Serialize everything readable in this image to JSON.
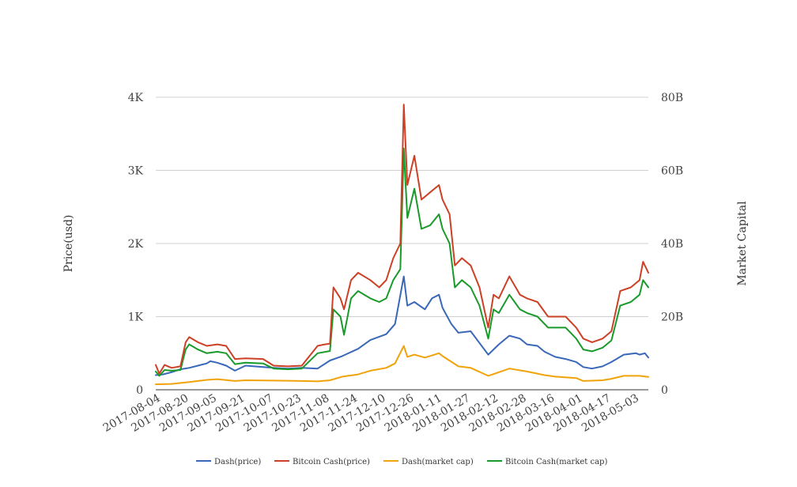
{
  "chart_data": {
    "type": "line",
    "title": "",
    "ylabel_left": "Price(usd)",
    "ylabel_right": "Market Capital",
    "ylim_left": [
      0,
      4000
    ],
    "ylim_right": [
      0,
      80000000000
    ],
    "yticks_left": [
      "0",
      "1K",
      "2K",
      "3K",
      "4K"
    ],
    "yticks_right": [
      "0",
      "20B",
      "40B",
      "60B",
      "80B"
    ],
    "x_range": [
      "2017-08-01",
      "2018-05-08"
    ],
    "xtick_labels": [
      "2017-08-04",
      "2017-08-20",
      "2017-09-05",
      "2017-09-21",
      "2017-10-07",
      "2017-10-23",
      "2017-11-08",
      "2017-11-24",
      "2017-12-10",
      "2017-12-26",
      "2018-01-11",
      "2018-01-27",
      "2018-02-12",
      "2018-02-28",
      "2018-03-16",
      "2018-04-01",
      "2018-04-17",
      "2018-05-03"
    ],
    "grid": true,
    "legend_position": "bottom",
    "series": [
      {
        "name": "Dash(price)",
        "axis": "left",
        "color": "#3a68b8",
        "points": [
          [
            "2017-08-01",
            200
          ],
          [
            "2017-08-05",
            210
          ],
          [
            "2017-08-10",
            240
          ],
          [
            "2017-08-15",
            280
          ],
          [
            "2017-08-20",
            300
          ],
          [
            "2017-08-25",
            330
          ],
          [
            "2017-08-30",
            360
          ],
          [
            "2017-09-01",
            390
          ],
          [
            "2017-09-05",
            370
          ],
          [
            "2017-09-10",
            330
          ],
          [
            "2017-09-15",
            260
          ],
          [
            "2017-09-21",
            330
          ],
          [
            "2017-10-01",
            310
          ],
          [
            "2017-10-07",
            300
          ],
          [
            "2017-10-15",
            290
          ],
          [
            "2017-10-23",
            300
          ],
          [
            "2017-11-01",
            290
          ],
          [
            "2017-11-08",
            400
          ],
          [
            "2017-11-15",
            460
          ],
          [
            "2017-11-24",
            560
          ],
          [
            "2017-12-01",
            680
          ],
          [
            "2017-12-10",
            760
          ],
          [
            "2017-12-15",
            900
          ],
          [
            "2017-12-20",
            1550
          ],
          [
            "2017-12-22",
            1150
          ],
          [
            "2017-12-26",
            1200
          ],
          [
            "2018-01-01",
            1100
          ],
          [
            "2018-01-05",
            1250
          ],
          [
            "2018-01-09",
            1300
          ],
          [
            "2018-01-11",
            1120
          ],
          [
            "2018-01-16",
            900
          ],
          [
            "2018-01-20",
            780
          ],
          [
            "2018-01-27",
            800
          ],
          [
            "2018-02-01",
            640
          ],
          [
            "2018-02-06",
            480
          ],
          [
            "2018-02-12",
            620
          ],
          [
            "2018-02-18",
            740
          ],
          [
            "2018-02-24",
            700
          ],
          [
            "2018-02-28",
            620
          ],
          [
            "2018-03-06",
            600
          ],
          [
            "2018-03-10",
            520
          ],
          [
            "2018-03-16",
            450
          ],
          [
            "2018-03-22",
            420
          ],
          [
            "2018-03-28",
            380
          ],
          [
            "2018-04-01",
            310
          ],
          [
            "2018-04-06",
            290
          ],
          [
            "2018-04-12",
            320
          ],
          [
            "2018-04-17",
            380
          ],
          [
            "2018-04-24",
            480
          ],
          [
            "2018-05-01",
            500
          ],
          [
            "2018-05-03",
            480
          ],
          [
            "2018-05-06",
            500
          ],
          [
            "2018-05-08",
            440
          ]
        ]
      },
      {
        "name": "Bitcoin Cash(price)",
        "axis": "left",
        "color": "#cc4125",
        "points": [
          [
            "2017-08-01",
            340
          ],
          [
            "2017-08-03",
            220
          ],
          [
            "2017-08-06",
            340
          ],
          [
            "2017-08-10",
            300
          ],
          [
            "2017-08-15",
            320
          ],
          [
            "2017-08-18",
            650
          ],
          [
            "2017-08-20",
            720
          ],
          [
            "2017-08-25",
            650
          ],
          [
            "2017-08-30",
            600
          ],
          [
            "2017-09-05",
            620
          ],
          [
            "2017-09-10",
            600
          ],
          [
            "2017-09-15",
            420
          ],
          [
            "2017-09-21",
            430
          ],
          [
            "2017-10-01",
            420
          ],
          [
            "2017-10-07",
            330
          ],
          [
            "2017-10-15",
            320
          ],
          [
            "2017-10-23",
            330
          ],
          [
            "2017-11-01",
            600
          ],
          [
            "2017-11-05",
            620
          ],
          [
            "2017-11-08",
            630
          ],
          [
            "2017-11-10",
            1400
          ],
          [
            "2017-11-14",
            1250
          ],
          [
            "2017-11-16",
            1100
          ],
          [
            "2017-11-20",
            1500
          ],
          [
            "2017-11-24",
            1600
          ],
          [
            "2017-12-01",
            1500
          ],
          [
            "2017-12-06",
            1400
          ],
          [
            "2017-12-10",
            1500
          ],
          [
            "2017-12-14",
            1800
          ],
          [
            "2017-12-18",
            2000
          ],
          [
            "2017-12-20",
            3900
          ],
          [
            "2017-12-22",
            2800
          ],
          [
            "2017-12-26",
            3200
          ],
          [
            "2017-12-30",
            2600
          ],
          [
            "2018-01-04",
            2700
          ],
          [
            "2018-01-09",
            2800
          ],
          [
            "2018-01-11",
            2600
          ],
          [
            "2018-01-15",
            2400
          ],
          [
            "2018-01-18",
            1700
          ],
          [
            "2018-01-22",
            1800
          ],
          [
            "2018-01-27",
            1700
          ],
          [
            "2018-02-01",
            1400
          ],
          [
            "2018-02-06",
            850
          ],
          [
            "2018-02-09",
            1300
          ],
          [
            "2018-02-12",
            1250
          ],
          [
            "2018-02-18",
            1550
          ],
          [
            "2018-02-24",
            1300
          ],
          [
            "2018-02-28",
            1250
          ],
          [
            "2018-03-06",
            1200
          ],
          [
            "2018-03-12",
            1000
          ],
          [
            "2018-03-16",
            1000
          ],
          [
            "2018-03-22",
            1000
          ],
          [
            "2018-03-28",
            850
          ],
          [
            "2018-04-01",
            700
          ],
          [
            "2018-04-06",
            650
          ],
          [
            "2018-04-12",
            700
          ],
          [
            "2018-04-17",
            800
          ],
          [
            "2018-04-22",
            1350
          ],
          [
            "2018-04-28",
            1400
          ],
          [
            "2018-05-03",
            1500
          ],
          [
            "2018-05-05",
            1750
          ],
          [
            "2018-05-08",
            1600
          ]
        ]
      },
      {
        "name": "Dash(market cap)",
        "axis": "right",
        "color": "#f0a30a",
        "points": [
          [
            "2017-08-01",
            1500000000
          ],
          [
            "2017-08-10",
            1600000000
          ],
          [
            "2017-08-20",
            2100000000
          ],
          [
            "2017-08-30",
            2700000000
          ],
          [
            "2017-09-05",
            2900000000
          ],
          [
            "2017-09-15",
            2400000000
          ],
          [
            "2017-09-21",
            2600000000
          ],
          [
            "2017-10-07",
            2500000000
          ],
          [
            "2017-10-23",
            2400000000
          ],
          [
            "2017-11-01",
            2300000000
          ],
          [
            "2017-11-08",
            2600000000
          ],
          [
            "2017-11-15",
            3600000000
          ],
          [
            "2017-11-24",
            4200000000
          ],
          [
            "2017-12-01",
            5200000000
          ],
          [
            "2017-12-10",
            6000000000
          ],
          [
            "2017-12-15",
            7200000000
          ],
          [
            "2017-12-20",
            12000000000
          ],
          [
            "2017-12-22",
            9000000000
          ],
          [
            "2017-12-26",
            9600000000
          ],
          [
            "2018-01-01",
            8800000000
          ],
          [
            "2018-01-09",
            10000000000
          ],
          [
            "2018-01-11",
            9200000000
          ],
          [
            "2018-01-20",
            6400000000
          ],
          [
            "2018-01-27",
            6000000000
          ],
          [
            "2018-02-06",
            3800000000
          ],
          [
            "2018-02-12",
            4800000000
          ],
          [
            "2018-02-18",
            5800000000
          ],
          [
            "2018-02-28",
            5000000000
          ],
          [
            "2018-03-10",
            4000000000
          ],
          [
            "2018-03-16",
            3600000000
          ],
          [
            "2018-03-28",
            3200000000
          ],
          [
            "2018-04-01",
            2400000000
          ],
          [
            "2018-04-12",
            2600000000
          ],
          [
            "2018-04-17",
            3000000000
          ],
          [
            "2018-04-24",
            3800000000
          ],
          [
            "2018-05-03",
            3800000000
          ],
          [
            "2018-05-08",
            3500000000
          ]
        ]
      },
      {
        "name": "Bitcoin Cash(market cap)",
        "axis": "right",
        "color": "#1a9a2a",
        "points": [
          [
            "2017-08-01",
            5000000000
          ],
          [
            "2017-08-03",
            3800000000
          ],
          [
            "2017-08-06",
            5400000000
          ],
          [
            "2017-08-10",
            5200000000
          ],
          [
            "2017-08-15",
            5400000000
          ],
          [
            "2017-08-18",
            11000000000
          ],
          [
            "2017-08-20",
            12400000000
          ],
          [
            "2017-08-25",
            11000000000
          ],
          [
            "2017-08-30",
            10000000000
          ],
          [
            "2017-09-05",
            10400000000
          ],
          [
            "2017-09-10",
            10000000000
          ],
          [
            "2017-09-15",
            7000000000
          ],
          [
            "2017-09-21",
            7400000000
          ],
          [
            "2017-10-01",
            7200000000
          ],
          [
            "2017-10-07",
            5800000000
          ],
          [
            "2017-10-15",
            5600000000
          ],
          [
            "2017-10-23",
            5800000000
          ],
          [
            "2017-11-01",
            10000000000
          ],
          [
            "2017-11-08",
            10600000000
          ],
          [
            "2017-11-10",
            22000000000
          ],
          [
            "2017-11-14",
            20000000000
          ],
          [
            "2017-11-16",
            15000000000
          ],
          [
            "2017-11-20",
            25000000000
          ],
          [
            "2017-11-24",
            27000000000
          ],
          [
            "2017-12-01",
            25000000000
          ],
          [
            "2017-12-06",
            24000000000
          ],
          [
            "2017-12-10",
            25000000000
          ],
          [
            "2017-12-14",
            30000000000
          ],
          [
            "2017-12-18",
            33000000000
          ],
          [
            "2017-12-20",
            66000000000
          ],
          [
            "2017-12-22",
            47000000000
          ],
          [
            "2017-12-26",
            55000000000
          ],
          [
            "2017-12-30",
            44000000000
          ],
          [
            "2018-01-04",
            45000000000
          ],
          [
            "2018-01-09",
            48000000000
          ],
          [
            "2018-01-11",
            44000000000
          ],
          [
            "2018-01-15",
            40000000000
          ],
          [
            "2018-01-18",
            28000000000
          ],
          [
            "2018-01-22",
            30000000000
          ],
          [
            "2018-01-27",
            28000000000
          ],
          [
            "2018-02-01",
            23000000000
          ],
          [
            "2018-02-06",
            14000000000
          ],
          [
            "2018-02-09",
            22000000000
          ],
          [
            "2018-02-12",
            21000000000
          ],
          [
            "2018-02-18",
            26000000000
          ],
          [
            "2018-02-24",
            22000000000
          ],
          [
            "2018-02-28",
            21000000000
          ],
          [
            "2018-03-06",
            20000000000
          ],
          [
            "2018-03-12",
            17000000000
          ],
          [
            "2018-03-16",
            17000000000
          ],
          [
            "2018-03-22",
            17000000000
          ],
          [
            "2018-03-28",
            14000000000
          ],
          [
            "2018-04-01",
            11000000000
          ],
          [
            "2018-04-06",
            10500000000
          ],
          [
            "2018-04-12",
            11500000000
          ],
          [
            "2018-04-17",
            13500000000
          ],
          [
            "2018-04-22",
            23000000000
          ],
          [
            "2018-04-28",
            24000000000
          ],
          [
            "2018-05-03",
            26000000000
          ],
          [
            "2018-05-05",
            30000000000
          ],
          [
            "2018-05-08",
            28000000000
          ]
        ]
      }
    ]
  }
}
